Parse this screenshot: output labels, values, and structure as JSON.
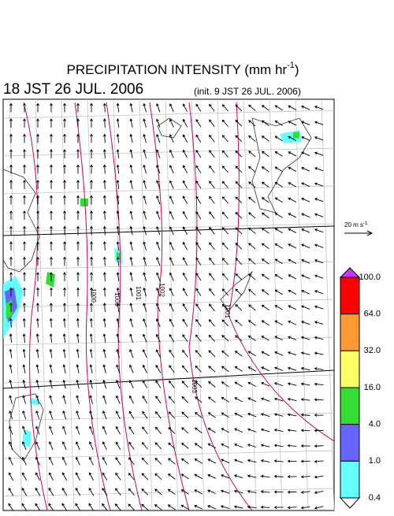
{
  "header": {
    "title": {
      "text": "PRECIPITATION INTENSITY (mm hr",
      "superscript": "-1",
      "close": ")"
    },
    "valid_time": "18 JST 26 JUL. 2006",
    "init_time": "(init. 9 JST 26 JUL. 2006)"
  },
  "vector_legend": {
    "text": "20 m s",
    "superscript": "-1"
  },
  "colorbar": {
    "labels": [
      "100.0",
      "64.0",
      "32.0",
      "16.0",
      "4.0",
      "1.0",
      "0.4"
    ],
    "colors": [
      "#ff0000",
      "#ff9933",
      "#ffff66",
      "#33dd33",
      "#6666ff",
      "#66ffff"
    ],
    "over_color": "#cc33ff",
    "under_color": "#ffffff"
  },
  "contour_labels": [
    "1000",
    "1000",
    "1001",
    "1002",
    "1003",
    "1001"
  ]
}
